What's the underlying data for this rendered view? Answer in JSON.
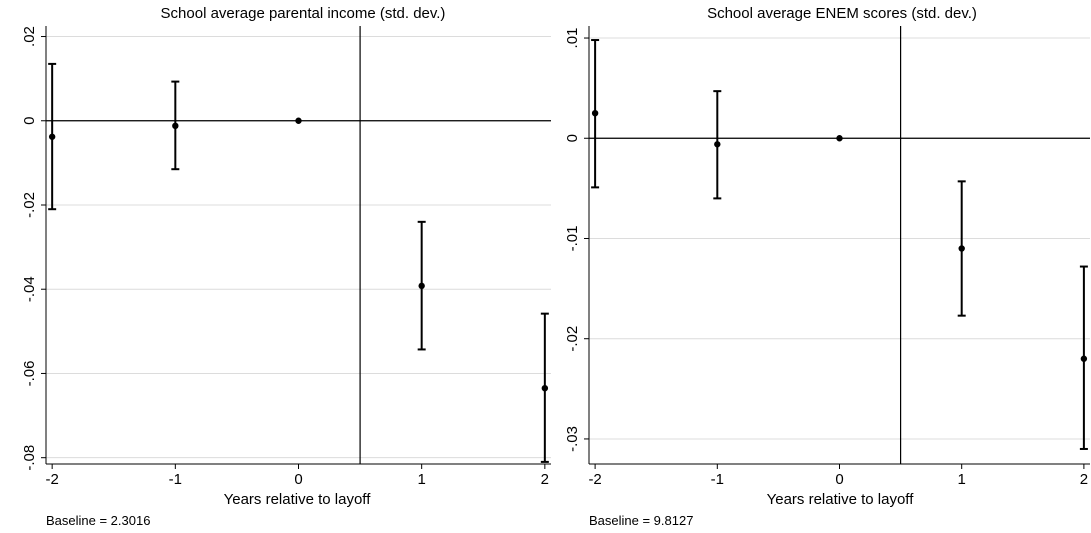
{
  "chart_data": [
    {
      "type": "scatter",
      "title": "School average parental income (std. dev.)",
      "xlabel": "Years relative to layoff",
      "ylabel": "",
      "x": [
        -2,
        -1,
        0,
        1,
        2
      ],
      "xtick_labels": [
        "-2",
        "-1",
        "0",
        "1",
        "2"
      ],
      "ytick_values": [
        0.02,
        0,
        -0.02,
        -0.04,
        -0.06,
        -0.08
      ],
      "ytick_labels": [
        ".02",
        "0",
        "-.02",
        "-.04",
        "-.06",
        "-.08"
      ],
      "ylim": [
        -0.0815,
        0.0225
      ],
      "xlim": [
        -2.05,
        2.05
      ],
      "points": [
        {
          "x": -2,
          "y": -0.0038,
          "ci_low": -0.021,
          "ci_high": 0.0135
        },
        {
          "x": -1,
          "y": -0.0012,
          "ci_low": -0.0115,
          "ci_high": 0.0093
        },
        {
          "x": 0,
          "y": 0.0,
          "ci_low": 0.0,
          "ci_high": 0.0
        },
        {
          "x": 1,
          "y": -0.0392,
          "ci_low": -0.0543,
          "ci_high": -0.024
        },
        {
          "x": 2,
          "y": -0.0635,
          "ci_low": -0.081,
          "ci_high": -0.0458
        }
      ],
      "hline": 0,
      "vline": 0.5,
      "grid": true,
      "baseline_note": "Baseline = 2.3016"
    },
    {
      "type": "scatter",
      "title": "School average ENEM scores (std. dev.)",
      "xlabel": "Years relative to layoff",
      "ylabel": "",
      "x": [
        -2,
        -1,
        0,
        1,
        2
      ],
      "xtick_labels": [
        "-2",
        "-1",
        "0",
        "1",
        "2"
      ],
      "ytick_values": [
        0.01,
        0,
        -0.01,
        -0.02,
        -0.03
      ],
      "ytick_labels": [
        ".01",
        "0",
        "-.01",
        "-.02",
        "-.03"
      ],
      "ylim": [
        -0.0325,
        0.0112
      ],
      "xlim": [
        -2.05,
        2.05
      ],
      "points": [
        {
          "x": -2,
          "y": 0.0025,
          "ci_low": -0.0049,
          "ci_high": 0.0098
        },
        {
          "x": -1,
          "y": -0.0006,
          "ci_low": -0.006,
          "ci_high": 0.0047
        },
        {
          "x": 0,
          "y": 0.0,
          "ci_low": 0.0,
          "ci_high": 0.0
        },
        {
          "x": 1,
          "y": -0.011,
          "ci_low": -0.0177,
          "ci_high": -0.0043
        },
        {
          "x": 2,
          "y": -0.022,
          "ci_low": -0.031,
          "ci_high": -0.0128
        }
      ],
      "hline": 0,
      "vline": 0.5,
      "grid": true,
      "baseline_note": "Baseline = 9.8127"
    }
  ]
}
